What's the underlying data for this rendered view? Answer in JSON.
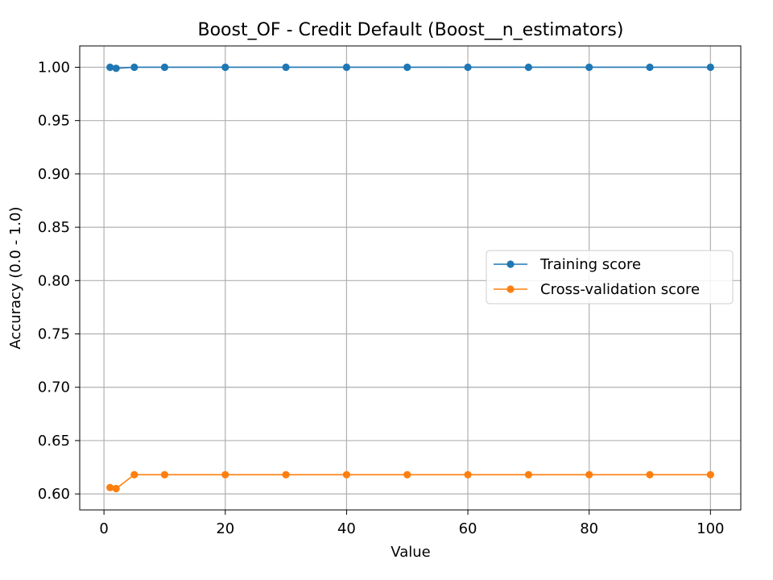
{
  "chart_data": {
    "type": "line",
    "title": "Boost_OF - Credit Default (Boost__n_estimators)",
    "xlabel": "Value",
    "ylabel": "Accuracy (0.0 - 1.0)",
    "xlim": [
      -4.0,
      105.0
    ],
    "ylim": [
      0.585,
      1.02
    ],
    "xticks": [
      0,
      20,
      40,
      60,
      80,
      100
    ],
    "xtick_labels": [
      "0",
      "20",
      "40",
      "60",
      "80",
      "100"
    ],
    "yticks": [
      0.6,
      0.65,
      0.7,
      0.75,
      0.8,
      0.85,
      0.9,
      0.95,
      1.0
    ],
    "ytick_labels": [
      "0.60",
      "0.65",
      "0.70",
      "0.75",
      "0.80",
      "0.85",
      "0.90",
      "0.95",
      "1.00"
    ],
    "grid": true,
    "legend_position": "center-right",
    "x": [
      1,
      2,
      5,
      10,
      20,
      30,
      40,
      50,
      60,
      70,
      80,
      90,
      100
    ],
    "series": [
      {
        "name": "Training score",
        "color": "#1f77b4",
        "marker": "circle",
        "values": [
          1.0,
          0.999,
          1.0,
          1.0,
          1.0,
          1.0,
          1.0,
          1.0,
          1.0,
          1.0,
          1.0,
          1.0,
          1.0
        ]
      },
      {
        "name": "Cross-validation score",
        "color": "#ff7f0e",
        "marker": "circle",
        "values": [
          0.606,
          0.605,
          0.618,
          0.618,
          0.618,
          0.618,
          0.618,
          0.618,
          0.618,
          0.618,
          0.618,
          0.618,
          0.618
        ]
      }
    ]
  }
}
